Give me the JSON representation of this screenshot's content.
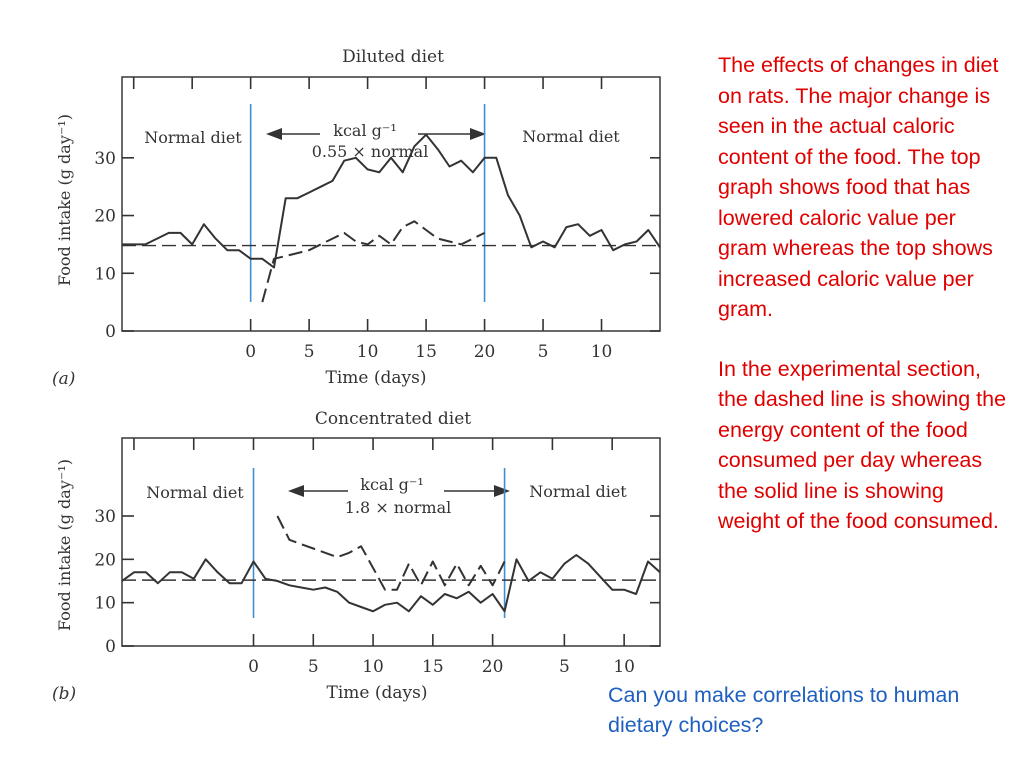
{
  "chart_data": [
    {
      "type": "line",
      "panel_label": "(a)",
      "title": "Diluted diet",
      "xlabel": "Time (days)",
      "ylabel": "Food intake (g day⁻¹)",
      "yticks": [
        "0",
        "10",
        "20",
        "30"
      ],
      "xticks": [
        "0",
        "5",
        "10",
        "15",
        "20",
        "5",
        "10"
      ],
      "ylim": [
        0,
        44
      ],
      "xlim": [
        -11,
        35
      ],
      "periods": [
        "Normal diet",
        "Normal diet"
      ],
      "period_boundaries": [
        0,
        20
      ],
      "arrow_label": [
        "kcal g⁻¹",
        "0.55 × normal"
      ],
      "baseline": 14.8,
      "series": [
        {
          "style": "solid",
          "x": [
            -11,
            -10,
            -9,
            -8,
            -7,
            -6,
            -5,
            -4,
            -3,
            -2,
            -1,
            0,
            1,
            2,
            3,
            4,
            5,
            6,
            7,
            8,
            9,
            10,
            11,
            12,
            13,
            14,
            15,
            16,
            17,
            18,
            19,
            20,
            21,
            22,
            23,
            24,
            25,
            26,
            27,
            28,
            29,
            30,
            31,
            32,
            33,
            34,
            35
          ],
          "values": [
            15,
            15,
            15,
            16,
            17,
            17,
            15,
            18.5,
            16,
            14,
            14,
            12.5,
            12.5,
            11,
            23,
            23,
            24,
            25,
            26,
            29.5,
            30,
            28,
            27.5,
            30,
            27.5,
            32,
            34,
            31.5,
            28.5,
            29.5,
            27.5,
            30,
            30,
            23.5,
            20,
            14.5,
            15.5,
            14.5,
            18,
            18.5,
            16.5,
            17.5,
            14,
            15,
            15.5,
            17.5,
            14.5
          ]
        },
        {
          "style": "dashed",
          "x": [
            1,
            2,
            3,
            4,
            5,
            6,
            7,
            8,
            9,
            10,
            11,
            12,
            13,
            14,
            15,
            16,
            17,
            18,
            19,
            20
          ],
          "values": [
            5,
            12.5,
            13,
            13.5,
            14,
            15,
            16,
            17,
            15.5,
            15,
            16.5,
            15,
            18,
            19,
            17.5,
            16,
            15.5,
            15,
            16,
            17
          ]
        }
      ]
    },
    {
      "type": "line",
      "panel_label": "(b)",
      "title": "Concentrated diet",
      "xlabel": "Time (days)",
      "ylabel": "Food intake (g day⁻¹)",
      "yticks": [
        "0",
        "10",
        "20",
        "30"
      ],
      "xticks": [
        "0",
        "5",
        "10",
        "15",
        "20",
        "5",
        "10"
      ],
      "ylim": [
        0,
        48
      ],
      "xlim": [
        -11,
        34
      ],
      "periods": [
        "Normal diet",
        "Normal diet"
      ],
      "period_boundaries": [
        0,
        21
      ],
      "arrow_label": [
        "kcal g⁻¹",
        "1.8 × normal"
      ],
      "baseline": 15.2,
      "series": [
        {
          "style": "solid",
          "x": [
            -11,
            -10,
            -9,
            -8,
            -7,
            -6,
            -5,
            -4,
            -3,
            -2,
            -1,
            0,
            1,
            2,
            3,
            4,
            5,
            6,
            7,
            8,
            9,
            10,
            11,
            12,
            13,
            14,
            15,
            16,
            17,
            18,
            19,
            20,
            21,
            22,
            23,
            24,
            25,
            26,
            27,
            28,
            29,
            30,
            31,
            32,
            33,
            34
          ],
          "values": [
            15,
            17,
            17,
            14.5,
            17,
            17,
            15.5,
            20,
            17,
            14.5,
            14.5,
            19.5,
            15.5,
            15,
            14,
            13.5,
            13,
            13.5,
            12.5,
            10,
            9,
            8,
            9.5,
            10,
            8,
            11.5,
            9.5,
            12,
            11,
            12.5,
            10,
            12,
            8,
            20,
            15,
            17,
            15.5,
            19,
            21,
            19,
            16,
            13,
            13,
            12,
            19.5,
            17
          ]
        },
        {
          "style": "dashed",
          "x": [
            2,
            3,
            4,
            5,
            6,
            7,
            8,
            9,
            10,
            11,
            12,
            13,
            14,
            15,
            16,
            17,
            18,
            19,
            20,
            21
          ],
          "values": [
            30,
            24.5,
            23.5,
            22.5,
            21.5,
            20.5,
            21.5,
            23,
            18,
            13,
            13,
            19,
            14,
            19.5,
            14,
            19,
            14,
            18.5,
            14,
            19.5
          ]
        }
      ]
    }
  ],
  "notes": {
    "paragraph_1": "The effects of changes in diet on rats.  The major change is seen in the actual caloric content of the food. The top graph shows food that has lowered caloric value per gram whereas the top shows increased caloric value per gram.",
    "paragraph_2": "In the experimental section, the dashed line is showing the energy content of the food consumed per day whereas the solid line is showing weight of the food consumed.",
    "question": "Can you make correlations to human dietary choices?"
  },
  "colors": {
    "notes": "#e00000",
    "question": "#1f5fbf",
    "period_divider": "#3d8fd6",
    "data_line": "#333333"
  }
}
